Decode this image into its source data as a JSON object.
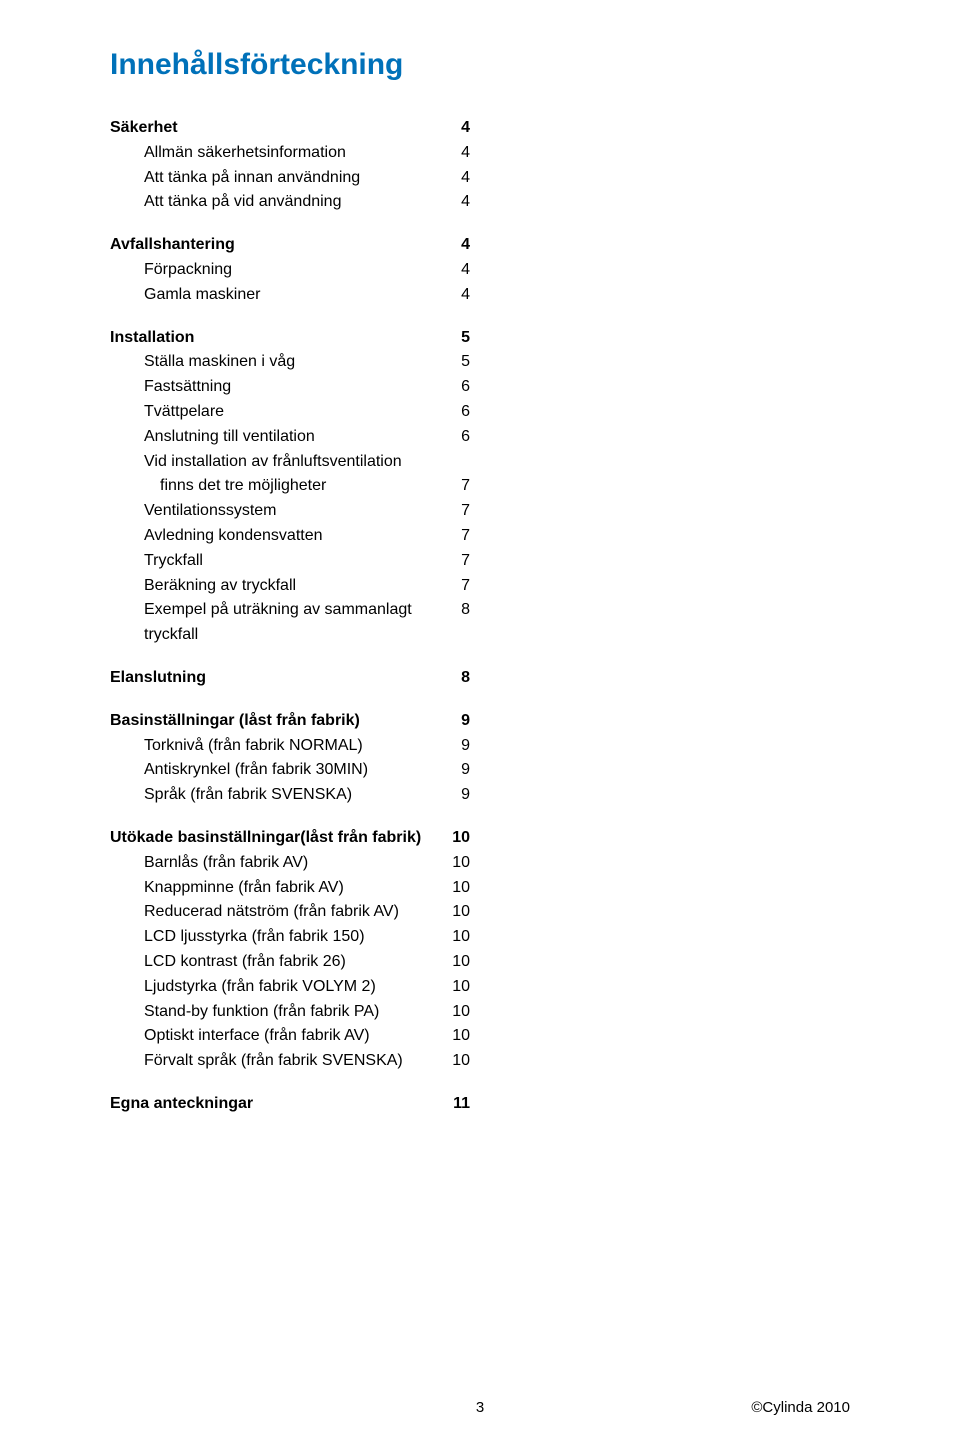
{
  "title": "Innehållsförteckning",
  "sections": [
    {
      "heading": {
        "label": "Säkerhet",
        "page": "4"
      },
      "items": [
        {
          "label": "Allmän säkerhetsinformation",
          "page": "4"
        },
        {
          "label": "Att tänka på innan användning",
          "page": "4"
        },
        {
          "label": "Att tänka på vid användning",
          "page": "4"
        }
      ]
    },
    {
      "heading": {
        "label": "Avfallshantering",
        "page": "4"
      },
      "items": [
        {
          "label": "Förpackning",
          "page": "4"
        },
        {
          "label": "Gamla maskiner",
          "page": "4"
        }
      ]
    },
    {
      "heading": {
        "label": "Installation",
        "page": "5"
      },
      "items": [
        {
          "label": "Ställa maskinen i våg",
          "page": "5"
        },
        {
          "label": "Fastsättning",
          "page": "6"
        },
        {
          "label": "Tvättpelare",
          "page": "6"
        },
        {
          "label": "Anslutning till ventilation",
          "page": "6"
        },
        {
          "label": "Vid installation av frånluftsventilation",
          "page": ""
        },
        {
          "label": "finns det tre möjligheter",
          "page": "7",
          "more": true
        },
        {
          "label": "Ventilationssystem",
          "page": "7"
        },
        {
          "label": "Avledning kondensvatten",
          "page": "7"
        },
        {
          "label": "Tryckfall",
          "page": "7"
        },
        {
          "label": "Beräkning av tryckfall",
          "page": "7"
        },
        {
          "label": "Exempel på uträkning av sammanlagt tryckfall",
          "page": "8"
        }
      ]
    },
    {
      "heading": {
        "label": "Elanslutning",
        "page": "8"
      },
      "items": []
    },
    {
      "heading": {
        "label": "Basinställningar (låst från fabrik)",
        "page": "9"
      },
      "items": [
        {
          "label": "Torknivå (från fabrik NORMAL)",
          "page": "9"
        },
        {
          "label": "Antiskrynkel (från fabrik 30MIN)",
          "page": "9"
        },
        {
          "label": "Språk (från fabrik SVENSKA)",
          "page": "9"
        }
      ]
    },
    {
      "heading": {
        "label": "Utökade basinställningar(låst från fabrik)",
        "page": "10"
      },
      "items": [
        {
          "label": "Barnlås (från fabrik AV)",
          "page": "10"
        },
        {
          "label": "Knappminne (från fabrik AV)",
          "page": "10"
        },
        {
          "label": "Reducerad nätström (från fabrik AV)",
          "page": "10"
        },
        {
          "label": "LCD ljusstyrka (från fabrik 150)",
          "page": "10"
        },
        {
          "label": "LCD kontrast (från fabrik 26)",
          "page": "10"
        },
        {
          "label": "Ljudstyrka (från fabrik VOLYM 2)",
          "page": "10"
        },
        {
          "label": "Stand-by funktion (från fabrik PA)",
          "page": "10"
        },
        {
          "label": "Optiskt interface (från fabrik AV)",
          "page": "10"
        },
        {
          "label": "Förvalt språk  (från fabrik SVENSKA)",
          "page": "10"
        }
      ]
    },
    {
      "heading": {
        "label": "Egna anteckningar",
        "page": "11"
      },
      "items": []
    }
  ],
  "footer": {
    "page_number": "3",
    "copyright": "©Cylinda 2010"
  },
  "colors": {
    "title_color": "#0071b9",
    "text_color": "#000000",
    "background": "#ffffff"
  }
}
